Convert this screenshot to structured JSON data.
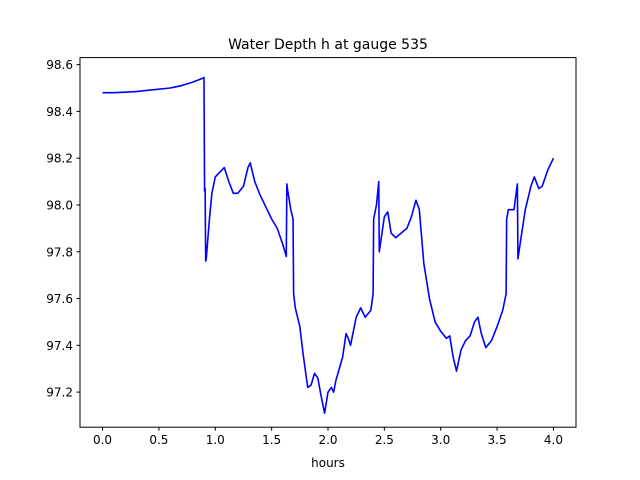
{
  "chart_data": {
    "type": "line",
    "title": "Water Depth h at gauge 535",
    "xlabel": "hours",
    "ylabel": "",
    "xlim": [
      -0.2,
      4.2
    ],
    "ylim": [
      97.05,
      98.63
    ],
    "xticks": [
      0.0,
      0.5,
      1.0,
      1.5,
      2.0,
      2.5,
      3.0,
      3.5,
      4.0
    ],
    "xtick_labels": [
      "0.0",
      "0.5",
      "1.0",
      "1.5",
      "2.0",
      "2.5",
      "3.0",
      "3.5",
      "4.0"
    ],
    "yticks": [
      97.2,
      97.4,
      97.6,
      97.8,
      98.0,
      98.2,
      98.4,
      98.6
    ],
    "ytick_labels": [
      "97.2",
      "97.4",
      "97.6",
      "97.8",
      "98.0",
      "98.2",
      "98.4",
      "98.6"
    ],
    "grid": false,
    "series": [
      {
        "color": "#0000ff",
        "x": [
          0.0,
          0.1,
          0.2,
          0.3,
          0.4,
          0.5,
          0.6,
          0.65,
          0.7,
          0.8,
          0.88,
          0.9,
          0.905,
          0.91,
          0.915,
          0.92,
          0.93,
          0.95,
          0.97,
          1.0,
          1.04,
          1.08,
          1.12,
          1.16,
          1.2,
          1.25,
          1.29,
          1.31,
          1.35,
          1.4,
          1.45,
          1.5,
          1.55,
          1.6,
          1.63,
          1.635,
          1.64,
          1.67,
          1.69,
          1.695,
          1.71,
          1.75,
          1.78,
          1.82,
          1.85,
          1.88,
          1.91,
          1.94,
          1.97,
          2.0,
          2.03,
          2.05,
          2.07,
          2.1,
          2.13,
          2.16,
          2.18,
          2.2,
          2.25,
          2.29,
          2.33,
          2.38,
          2.4,
          2.405,
          2.43,
          2.45,
          2.455,
          2.47,
          2.5,
          2.53,
          2.56,
          2.6,
          2.65,
          2.7,
          2.74,
          2.78,
          2.81,
          2.85,
          2.9,
          2.95,
          3.0,
          3.05,
          3.08,
          3.11,
          3.14,
          3.18,
          3.22,
          3.26,
          3.3,
          3.33,
          3.36,
          3.4,
          3.45,
          3.5,
          3.55,
          3.58,
          3.585,
          3.6,
          3.65,
          3.68,
          3.685,
          3.7,
          3.75,
          3.8,
          3.83,
          3.87,
          3.9,
          3.95,
          4.0
        ],
        "y": [
          98.48,
          98.48,
          98.482,
          98.485,
          98.49,
          98.495,
          98.5,
          98.505,
          98.51,
          98.525,
          98.54,
          98.545,
          98.06,
          98.07,
          97.76,
          97.77,
          97.83,
          97.95,
          98.05,
          98.12,
          98.14,
          98.16,
          98.1,
          98.05,
          98.05,
          98.08,
          98.16,
          98.18,
          98.1,
          98.04,
          97.99,
          97.94,
          97.9,
          97.83,
          97.78,
          98.09,
          98.07,
          97.98,
          97.94,
          97.62,
          97.56,
          97.48,
          97.36,
          97.22,
          97.23,
          97.28,
          97.26,
          97.18,
          97.11,
          97.2,
          97.22,
          97.2,
          97.25,
          97.3,
          97.35,
          97.45,
          97.43,
          97.4,
          97.52,
          97.56,
          97.52,
          97.55,
          97.62,
          97.94,
          98.0,
          98.1,
          97.8,
          97.85,
          97.95,
          97.97,
          97.88,
          97.86,
          97.88,
          97.9,
          97.95,
          98.02,
          97.98,
          97.75,
          97.6,
          97.5,
          97.46,
          97.43,
          97.44,
          97.35,
          97.29,
          97.38,
          97.42,
          97.44,
          97.5,
          97.52,
          97.45,
          97.39,
          97.42,
          97.48,
          97.55,
          97.62,
          97.94,
          97.98,
          97.98,
          98.09,
          97.77,
          97.82,
          97.98,
          98.08,
          98.12,
          98.07,
          98.08,
          98.15,
          98.2
        ]
      }
    ]
  }
}
